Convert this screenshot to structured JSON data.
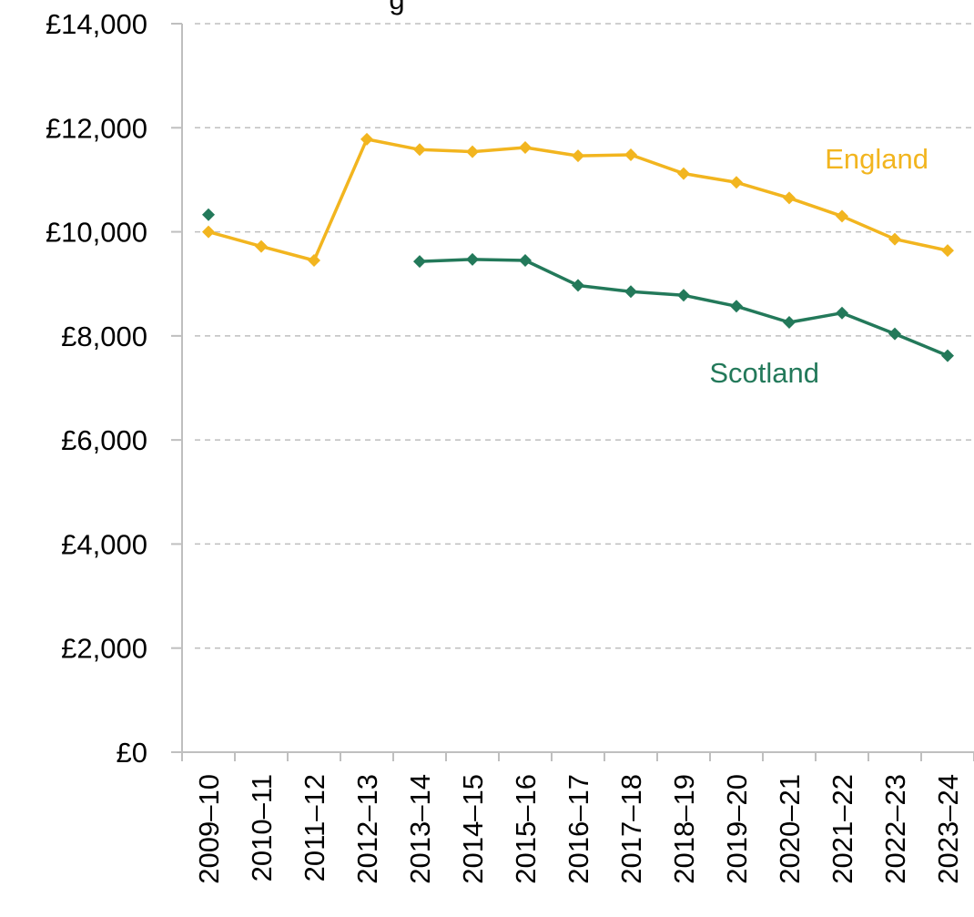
{
  "chart_data": {
    "type": "line",
    "title_fragment": "g",
    "xlabel": "",
    "ylabel": "",
    "ylim": [
      0,
      14000
    ],
    "yticks": [
      0,
      2000,
      4000,
      6000,
      8000,
      10000,
      12000,
      14000
    ],
    "ytick_labels": [
      "£0",
      "£2,000",
      "£4,000",
      "£6,000",
      "£8,000",
      "£10,000",
      "£12,000",
      "£14,000"
    ],
    "grid": "horizontal dashed",
    "legend": "inline labels",
    "categories": [
      "2009–10",
      "2010–11",
      "2011–12",
      "2012–13",
      "2013–14",
      "2014–15",
      "2015–16",
      "2016–17",
      "2017–18",
      "2018–19",
      "2019–20",
      "2020–21",
      "2021–22",
      "2022–23",
      "2023–24"
    ],
    "series": [
      {
        "name": "England",
        "color": "#F2B51F",
        "values": [
          10000,
          9720,
          9450,
          11780,
          11580,
          11540,
          11620,
          11460,
          11480,
          11120,
          10950,
          10650,
          10300,
          9860,
          9640
        ]
      },
      {
        "name": "Scotland",
        "color": "#23795A",
        "values": [
          10330,
          null,
          null,
          null,
          9430,
          9470,
          9450,
          8970,
          8850,
          8780,
          8570,
          8260,
          8440,
          8040,
          7620
        ]
      }
    ]
  }
}
